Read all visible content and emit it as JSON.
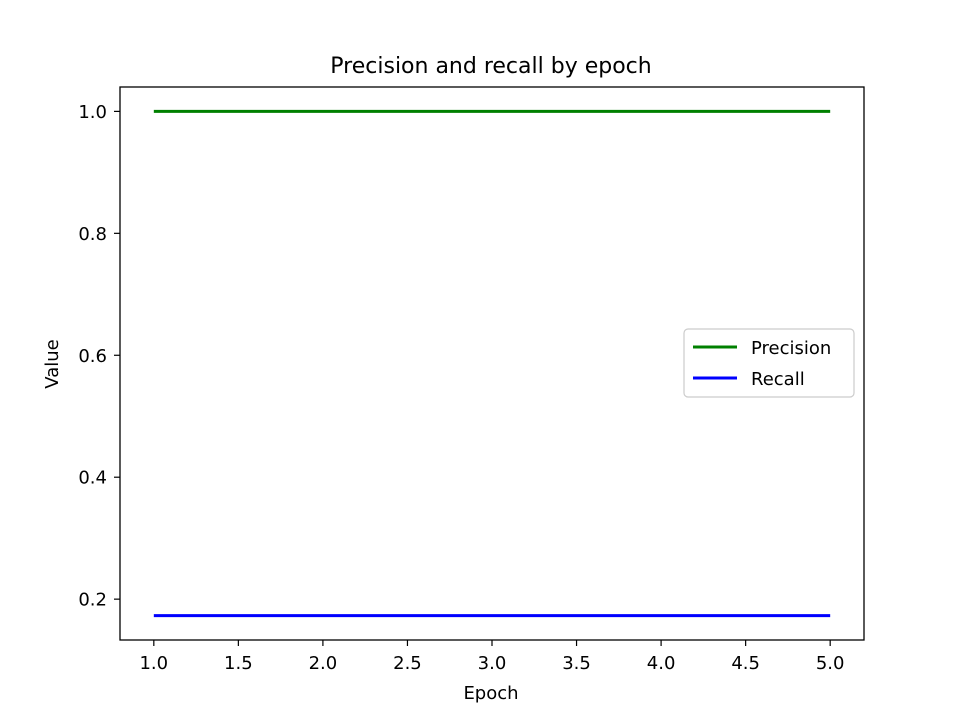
{
  "chart_data": {
    "type": "line",
    "title": "Precision and recall by epoch",
    "xlabel": "Epoch",
    "ylabel": "Value",
    "x": [
      1,
      2,
      3,
      4,
      5
    ],
    "xlim": [
      0.8,
      5.2
    ],
    "ylim": [
      0.133,
      1.04
    ],
    "xticks": [
      1.0,
      1.5,
      2.0,
      2.5,
      3.0,
      3.5,
      4.0,
      4.5,
      5.0
    ],
    "xtick_labels": [
      "1.0",
      "1.5",
      "2.0",
      "2.5",
      "3.0",
      "3.5",
      "4.0",
      "4.5",
      "5.0"
    ],
    "yticks": [
      0.2,
      0.4,
      0.6,
      0.8,
      1.0
    ],
    "ytick_labels": [
      "0.2",
      "0.4",
      "0.6",
      "0.8",
      "1.0"
    ],
    "grid": false,
    "legend_position": "right",
    "series": [
      {
        "name": "Precision",
        "color": "#008000",
        "values": [
          1.0,
          1.0,
          1.0,
          1.0,
          1.0
        ]
      },
      {
        "name": "Recall",
        "color": "#0000ff",
        "values": [
          0.173,
          0.173,
          0.173,
          0.173,
          0.173
        ]
      }
    ]
  }
}
